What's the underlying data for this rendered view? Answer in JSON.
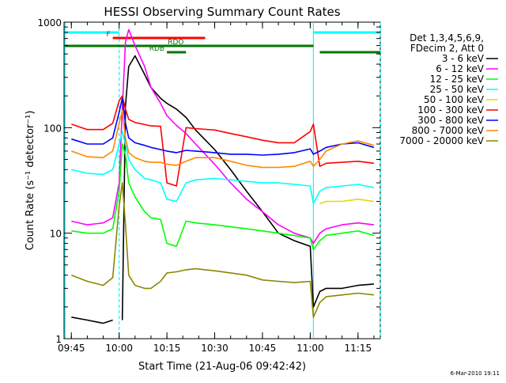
{
  "chart_data": {
    "type": "line",
    "title": "HESSI Observing Summary Count Rates",
    "xlabel": "Start Time (21-Aug-06 09:42:42)",
    "ylabel": "Count Rate (s⁻¹ detector⁻¹)",
    "yscale": "log",
    "ylim": [
      1,
      1000
    ],
    "xlim": [
      "09:42:42",
      "11:22:00"
    ],
    "x_ticks": [
      "09:45",
      "10:00",
      "10:15",
      "10:30",
      "10:45",
      "11:00",
      "11:15"
    ],
    "y_ticks": [
      "1",
      "10",
      "100",
      "1000"
    ],
    "footer": "6-Mar-2010 19:11",
    "legend": {
      "header": [
        "Det 1,3,4,5,6,9,",
        "FDecim 2, Att 0"
      ],
      "position": "right"
    },
    "flags": [
      {
        "label": "F",
        "color": "#ff0000",
        "start": "09:58",
        "end": "10:27",
        "level": "upper"
      },
      {
        "label": "RDO",
        "color": "#007700",
        "start": "09:43",
        "end": "11:01",
        "level": "middle"
      },
      {
        "label": "RDB",
        "color": "#007700",
        "start": "10:15",
        "end": "10:21",
        "level": "lower"
      },
      {
        "label": "",
        "color": "#007700",
        "start": "11:03",
        "end": "11:22",
        "level": "lower"
      }
    ],
    "night": [
      {
        "start": "09:43",
        "end": "10:00",
        "color": "#00ffff"
      },
      {
        "start": "11:01",
        "end": "11:22",
        "color": "#00ffff"
      }
    ],
    "x": [
      "09:45",
      "09:50",
      "09:55",
      "09:58",
      "10:00",
      "10:01",
      "10:02",
      "10:03",
      "10:05",
      "10:08",
      "10:10",
      "10:13",
      "10:15",
      "10:18",
      "10:21",
      "10:24",
      "10:30",
      "10:35",
      "10:40",
      "10:45",
      "10:50",
      "10:55",
      "11:00",
      "11:01",
      "11:03",
      "11:05",
      "11:10",
      "11:15",
      "11:20"
    ],
    "series": [
      {
        "name": "3 - 6 keV",
        "color": "#000000",
        "values": [
          1.6,
          1.5,
          1.4,
          1.5,
          null,
          1.5,
          160,
          380,
          480,
          320,
          240,
          190,
          170,
          150,
          125,
          95,
          62,
          40,
          25,
          16,
          10,
          8.5,
          7.5,
          2,
          2.8,
          3,
          3,
          3.2,
          3.3
        ]
      },
      {
        "name": "6 - 12 keV",
        "color": "#ff00ff",
        "values": [
          13,
          12,
          12.5,
          14,
          30,
          150,
          650,
          850,
          600,
          380,
          240,
          170,
          130,
          105,
          88,
          70,
          45,
          30,
          21,
          16,
          12,
          10,
          9,
          8,
          10,
          11,
          12,
          12.5,
          12
        ]
      },
      {
        "name": "12 - 25 keV",
        "color": "#00ff00",
        "values": [
          10.5,
          10,
          10,
          11,
          25,
          70,
          55,
          30,
          22,
          16,
          14,
          13.5,
          8,
          7.5,
          13,
          12.5,
          12,
          11.5,
          11,
          10.5,
          10,
          9.5,
          9,
          7,
          8.5,
          9.5,
          10,
          10.5,
          9.5
        ]
      },
      {
        "name": "25 - 50 keV",
        "color": "#00ffff",
        "values": [
          40,
          37,
          36,
          40,
          70,
          92,
          70,
          50,
          40,
          33,
          32,
          30,
          21,
          20,
          30,
          32,
          33,
          32,
          31,
          30,
          30,
          29,
          28,
          19,
          25,
          27,
          28,
          29,
          27
        ]
      },
      {
        "name": "50 - 100 keV",
        "color": "#dddd00",
        "values": [
          null,
          null,
          null,
          null,
          null,
          null,
          null,
          null,
          null,
          null,
          null,
          null,
          null,
          null,
          null,
          null,
          null,
          null,
          null,
          null,
          null,
          null,
          null,
          null,
          19,
          20,
          20,
          21,
          20
        ]
      },
      {
        "name": "100 - 300 keV",
        "color": "#ff0000",
        "values": [
          108,
          96,
          96,
          110,
          180,
          200,
          150,
          120,
          112,
          107,
          104,
          103,
          30,
          28,
          100,
          98,
          95,
          88,
          82,
          76,
          72,
          72,
          92,
          108,
          43,
          46,
          47,
          48,
          46
        ]
      },
      {
        "name": "300 - 800 keV",
        "color": "#0000ff",
        "values": [
          78,
          70,
          70,
          80,
          140,
          190,
          110,
          80,
          72,
          68,
          65,
          62,
          60,
          58,
          61,
          60,
          58,
          56,
          56,
          55,
          56,
          58,
          63,
          56,
          60,
          65,
          70,
          72,
          65
        ]
      },
      {
        "name": "800 - 7000 keV",
        "color": "#ff8800",
        "values": [
          60,
          53,
          52,
          60,
          110,
          145,
          80,
          58,
          52,
          48,
          47,
          47,
          45,
          44,
          48,
          52,
          52,
          48,
          44,
          42,
          42,
          43,
          48,
          43,
          50,
          60,
          70,
          75,
          68
        ]
      },
      {
        "name": "7000 - 20000 keV",
        "color": "#888800",
        "values": [
          4,
          3.5,
          3.2,
          3.8,
          18,
          30,
          12,
          4,
          3.2,
          3,
          3,
          3.5,
          4.2,
          4.3,
          4.5,
          4.6,
          4.4,
          4.2,
          4,
          3.6,
          3.5,
          3.4,
          3.5,
          1.6,
          2.2,
          2.5,
          2.6,
          2.7,
          2.6
        ]
      }
    ]
  }
}
